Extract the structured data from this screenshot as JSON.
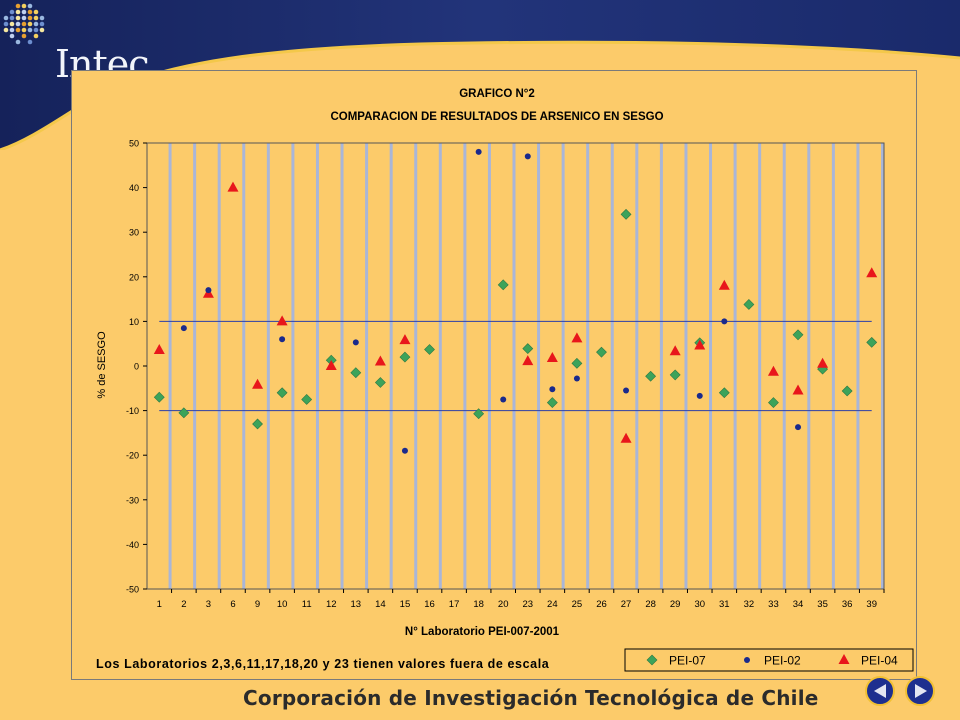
{
  "header": {
    "logo_text": "Intec"
  },
  "footer": {
    "org_name": "Corporación de Investigación Tecnológica de Chile"
  },
  "nav": {
    "prev_icon": "triangle-left",
    "next_icon": "triangle-right"
  },
  "colors": {
    "background": "#FCCB6A",
    "banner": "#1B2A6B",
    "pei07": "#3CA35A",
    "pei02": "#1A2A8C",
    "pei04": "#E8161B",
    "grid": "#A9B6D8",
    "limit_lines": "#2B3FA8"
  },
  "chart_data": {
    "type": "scatter",
    "title": "GRAFICO N°2",
    "subtitle": "COMPARACION DE RESULTADOS DE ARSENICO EN SESGO",
    "xlabel": "N° Laboratorio PEI-007-2001",
    "ylabel": "% de SESGO",
    "note": "Los Laboratorios 2,3,6,11,17,18,20 y 23 tienen valores fuera de escala",
    "categories": [
      "1",
      "2",
      "3",
      "6",
      "9",
      "10",
      "11",
      "12",
      "13",
      "14",
      "15",
      "16",
      "17",
      "18",
      "20",
      "23",
      "24",
      "25",
      "26",
      "27",
      "28",
      "29",
      "30",
      "31",
      "32",
      "33",
      "34",
      "35",
      "36",
      "39"
    ],
    "ylim": [
      -50,
      50
    ],
    "yticks": [
      -50,
      -40,
      -30,
      -20,
      -10,
      0,
      10,
      20,
      30,
      40,
      50
    ],
    "limit_lines": [
      10,
      -10
    ],
    "grid": "vertical",
    "legend_position": "bottom-right",
    "series": [
      {
        "name": "PEI-07",
        "marker": "diamond",
        "values": [
          -7,
          -10.5,
          null,
          null,
          -13,
          -6,
          -7.5,
          1.3,
          -1.5,
          -3.7,
          2,
          3.7,
          null,
          -10.7,
          18.2,
          3.9,
          -8.2,
          0.6,
          3.1,
          34,
          -2.3,
          -2,
          5.2,
          -6,
          13.8,
          -8.2,
          7,
          -0.7,
          -5.6,
          5.3
        ]
      },
      {
        "name": "PEI-02",
        "marker": "circle",
        "values": [
          null,
          8.5,
          17,
          null,
          null,
          6,
          null,
          null,
          5.3,
          null,
          -19,
          null,
          null,
          48,
          -7.5,
          47,
          -5.2,
          -2.8,
          null,
          -5.5,
          null,
          null,
          -6.7,
          10,
          null,
          null,
          -13.7,
          null,
          null,
          null
        ]
      },
      {
        "name": "PEI-04",
        "marker": "triangle",
        "values": [
          3.6,
          null,
          16.2,
          40,
          -4.2,
          10,
          null,
          0,
          null,
          1,
          5.8,
          null,
          null,
          null,
          null,
          1.1,
          1.8,
          6.2,
          null,
          -16.3,
          null,
          3.3,
          4.6,
          18,
          null,
          -1.3,
          -5.5,
          0.5,
          null,
          20.8
        ]
      }
    ]
  }
}
